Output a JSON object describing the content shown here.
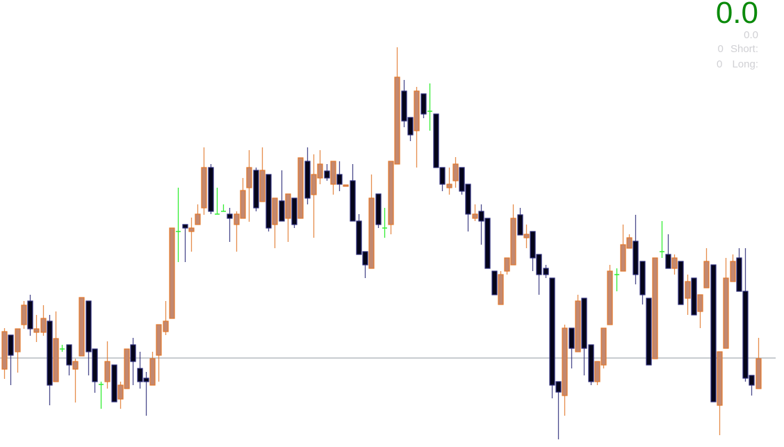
{
  "panel": {
    "profit": "0.0",
    "profit_sub": "0.0",
    "short_count": "0",
    "short_label": "Short:",
    "long_count": "0",
    "long_label": "Long:"
  },
  "colors": {
    "bull_fill": "#c3886f",
    "bull_border": "#e2782c",
    "bear_fill": "#05051a",
    "bear_border": "#2a2a78",
    "doji": "#33ee33",
    "level_line": "#a7adb3",
    "profit_text": "#0b8a0b",
    "panel_text": "#d0d0d4"
  },
  "chart_data": {
    "type": "candlestick",
    "title": "",
    "xlabel": "",
    "ylabel": "",
    "axes_shown": false,
    "grid": false,
    "ylim": [
      0,
      640
    ],
    "horizontal_level": 125,
    "ohlc_fields": [
      "open",
      "high",
      "low",
      "close"
    ],
    "candles": [
      [
        109,
        168,
        95,
        163
      ],
      [
        158,
        158,
        86,
        129
      ],
      [
        134,
        167,
        104,
        167
      ],
      [
        173,
        207,
        167,
        201
      ],
      [
        207,
        216,
        157,
        167
      ],
      [
        162,
        187,
        148,
        167
      ],
      [
        162,
        201,
        157,
        182
      ],
      [
        178,
        187,
        57,
        86
      ],
      [
        91,
        192,
        91,
        153
      ],
      [
        138,
        144,
        134,
        138
      ],
      [
        144,
        144,
        100,
        115
      ],
      [
        109,
        124,
        61,
        120
      ],
      [
        128,
        212,
        128,
        212
      ],
      [
        207,
        207,
        100,
        134
      ],
      [
        138,
        138,
        75,
        91
      ],
      [
        87,
        91,
        52,
        87
      ],
      [
        91,
        149,
        81,
        120
      ],
      [
        115,
        115,
        62,
        62
      ],
      [
        66,
        91,
        52,
        86
      ],
      [
        81,
        138,
        81,
        138
      ],
      [
        144,
        154,
        86,
        120
      ],
      [
        110,
        134,
        81,
        91
      ],
      [
        96,
        105,
        42,
        91
      ],
      [
        86,
        134,
        86,
        124
      ],
      [
        129,
        173,
        91,
        173
      ],
      [
        163,
        207,
        158,
        178
      ],
      [
        182,
        312,
        182,
        312
      ],
      [
        307,
        370,
        263,
        307
      ],
      [
        317,
        317,
        263,
        312
      ],
      [
        307,
        327,
        278,
        312
      ],
      [
        317,
        346,
        317,
        332
      ],
      [
        341,
        428,
        331,
        399
      ],
      [
        399,
        404,
        332,
        336
      ],
      [
        332,
        370,
        332,
        332
      ],
      [
        336,
        346,
        336,
        336
      ],
      [
        332,
        341,
        292,
        326
      ],
      [
        317,
        336,
        278,
        332
      ],
      [
        326,
        384,
        326,
        366
      ],
      [
        370,
        424,
        321,
        399
      ],
      [
        395,
        399,
        336,
        341
      ],
      [
        350,
        428,
        350,
        395
      ],
      [
        389,
        389,
        307,
        312
      ],
      [
        317,
        355,
        283,
        355
      ],
      [
        351,
        395,
        322,
        322
      ],
      [
        326,
        361,
        292,
        361
      ],
      [
        355,
        355,
        312,
        317
      ],
      [
        326,
        413,
        326,
        413
      ],
      [
        408,
        428,
        346,
        355
      ],
      [
        360,
        418,
        298,
        389
      ],
      [
        384,
        424,
        375,
        404
      ],
      [
        394,
        404,
        380,
        384
      ],
      [
        375,
        408,
        360,
        408
      ],
      [
        389,
        408,
        365,
        375
      ],
      [
        372,
        374,
        372,
        374
      ],
      [
        380,
        404,
        322,
        322
      ],
      [
        322,
        332,
        274,
        274
      ],
      [
        278,
        278,
        240,
        259
      ],
      [
        254,
        389,
        254,
        355
      ],
      [
        361,
        361,
        312,
        317
      ],
      [
        312,
        341,
        298,
        312
      ],
      [
        317,
        408,
        303,
        408
      ],
      [
        404,
        572,
        404,
        529
      ],
      [
        509,
        525,
        457,
        466
      ],
      [
        471,
        471,
        437,
        446
      ],
      [
        452,
        515,
        399,
        509
      ],
      [
        505,
        505,
        470,
        476
      ],
      [
        480,
        520,
        452,
        480
      ],
      [
        476,
        476,
        399,
        399
      ],
      [
        399,
        399,
        365,
        375
      ],
      [
        370,
        399,
        360,
        375
      ],
      [
        380,
        414,
        370,
        404
      ],
      [
        399,
        399,
        360,
        365
      ],
      [
        375,
        375,
        307,
        332
      ],
      [
        326,
        346,
        322,
        332
      ],
      [
        336,
        346,
        288,
        322
      ],
      [
        326,
        326,
        254,
        254
      ],
      [
        250,
        250,
        216,
        216
      ],
      [
        202,
        250,
        202,
        245
      ],
      [
        250,
        269,
        245,
        269
      ],
      [
        259,
        346,
        259,
        326
      ],
      [
        331,
        341,
        302,
        302
      ],
      [
        298,
        317,
        283,
        303
      ],
      [
        307,
        307,
        250,
        269
      ],
      [
        274,
        274,
        216,
        245
      ],
      [
        254,
        259,
        240,
        245
      ],
      [
        240,
        240,
        67,
        86
      ],
      [
        91,
        91,
        8,
        76
      ],
      [
        71,
        173,
        42,
        168
      ],
      [
        168,
        168,
        110,
        139
      ],
      [
        134,
        216,
        134,
        207
      ],
      [
        211,
        211,
        100,
        139
      ],
      [
        144,
        144,
        86,
        91
      ],
      [
        91,
        120,
        86,
        120
      ],
      [
        115,
        168,
        110,
        168
      ],
      [
        173,
        259,
        173,
        250
      ],
      [
        245,
        254,
        221,
        245
      ],
      [
        250,
        317,
        250,
        288
      ],
      [
        283,
        303,
        283,
        298
      ],
      [
        293,
        331,
        231,
        245
      ],
      [
        264,
        264,
        202,
        216
      ],
      [
        211,
        211,
        115,
        115
      ],
      [
        124,
        269,
        124,
        269
      ],
      [
        278,
        322,
        269,
        278
      ],
      [
        274,
        303,
        254,
        254
      ],
      [
        254,
        274,
        245,
        269
      ],
      [
        264,
        264,
        202,
        202
      ],
      [
        211,
        245,
        187,
        235
      ],
      [
        240,
        240,
        187,
        187
      ],
      [
        192,
        216,
        168,
        216
      ],
      [
        226,
        283,
        226,
        264
      ],
      [
        259,
        259,
        62,
        62
      ],
      [
        57,
        134,
        14,
        134
      ],
      [
        139,
        269,
        139,
        240
      ],
      [
        235,
        274,
        235,
        264
      ],
      [
        269,
        283,
        221,
        221
      ],
      [
        221,
        283,
        91,
        96
      ],
      [
        100,
        100,
        71,
        86
      ],
      [
        81,
        154,
        81,
        124
      ]
    ]
  }
}
